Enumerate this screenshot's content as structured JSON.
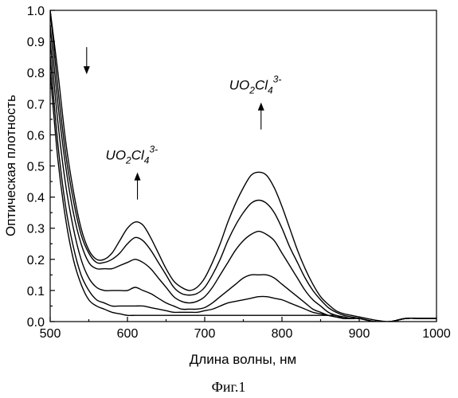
{
  "chart_data": {
    "type": "line",
    "title": "",
    "xlabel": "Длина волны, нм",
    "ylabel": "Оптическая плотность",
    "xlim": [
      500,
      1000
    ],
    "ylim": [
      0,
      1.0
    ],
    "x_ticks": [
      500,
      600,
      700,
      800,
      900,
      1000
    ],
    "y_ticks": [
      0.0,
      0.1,
      0.2,
      0.3,
      0.4,
      0.5,
      0.6,
      0.7,
      0.8,
      0.9,
      1.0
    ],
    "grid": false,
    "x": [
      500,
      510,
      520,
      530,
      540,
      550,
      560,
      570,
      580,
      590,
      600,
      610,
      620,
      630,
      640,
      650,
      660,
      670,
      680,
      690,
      700,
      710,
      720,
      730,
      740,
      750,
      760,
      770,
      780,
      790,
      800,
      810,
      820,
      830,
      840,
      850,
      860,
      870,
      880,
      890,
      900,
      920,
      940,
      960,
      980,
      1000
    ],
    "series": [
      {
        "values": [
          0.8,
          0.52,
          0.33,
          0.2,
          0.12,
          0.07,
          0.05,
          0.04,
          0.03,
          0.025,
          0.02,
          0.02,
          0.02,
          0.02,
          0.02,
          0.02,
          0.02,
          0.02,
          0.02,
          0.02,
          0.02,
          0.02,
          0.02,
          0.02,
          0.02,
          0.02,
          0.02,
          0.02,
          0.02,
          0.02,
          0.02,
          0.02,
          0.02,
          0.02,
          0.02,
          0.02,
          0.02,
          0.02,
          0.01,
          0.01,
          0.01,
          0.0,
          0.0,
          0.01,
          0.01,
          0.01
        ]
      },
      {
        "values": [
          0.85,
          0.57,
          0.37,
          0.24,
          0.15,
          0.1,
          0.07,
          0.06,
          0.05,
          0.05,
          0.05,
          0.05,
          0.05,
          0.045,
          0.04,
          0.035,
          0.03,
          0.03,
          0.03,
          0.03,
          0.035,
          0.04,
          0.05,
          0.06,
          0.065,
          0.07,
          0.075,
          0.08,
          0.08,
          0.075,
          0.07,
          0.06,
          0.05,
          0.04,
          0.03,
          0.025,
          0.02,
          0.015,
          0.01,
          0.01,
          0.01,
          0.0,
          0.0,
          0.01,
          0.01,
          0.01
        ]
      },
      {
        "values": [
          0.9,
          0.64,
          0.44,
          0.3,
          0.2,
          0.14,
          0.11,
          0.1,
          0.1,
          0.1,
          0.1,
          0.11,
          0.1,
          0.09,
          0.075,
          0.06,
          0.05,
          0.04,
          0.04,
          0.04,
          0.045,
          0.06,
          0.08,
          0.1,
          0.12,
          0.14,
          0.15,
          0.15,
          0.15,
          0.14,
          0.12,
          0.1,
          0.08,
          0.06,
          0.04,
          0.03,
          0.02,
          0.015,
          0.01,
          0.01,
          0.01,
          0.0,
          0.0,
          0.01,
          0.01,
          0.01
        ]
      },
      {
        "values": [
          0.95,
          0.7,
          0.5,
          0.35,
          0.25,
          0.19,
          0.17,
          0.17,
          0.17,
          0.18,
          0.19,
          0.2,
          0.19,
          0.17,
          0.14,
          0.11,
          0.08,
          0.065,
          0.06,
          0.065,
          0.08,
          0.11,
          0.15,
          0.19,
          0.23,
          0.26,
          0.28,
          0.29,
          0.28,
          0.26,
          0.22,
          0.18,
          0.14,
          0.1,
          0.07,
          0.05,
          0.03,
          0.02,
          0.015,
          0.01,
          0.01,
          0.0,
          0.0,
          0.01,
          0.01,
          0.01
        ]
      },
      {
        "values": [
          1.0,
          0.75,
          0.54,
          0.39,
          0.28,
          0.22,
          0.19,
          0.19,
          0.2,
          0.22,
          0.25,
          0.27,
          0.26,
          0.23,
          0.19,
          0.15,
          0.11,
          0.09,
          0.085,
          0.09,
          0.11,
          0.15,
          0.2,
          0.26,
          0.31,
          0.35,
          0.38,
          0.39,
          0.38,
          0.35,
          0.3,
          0.24,
          0.19,
          0.14,
          0.1,
          0.07,
          0.045,
          0.03,
          0.02,
          0.015,
          0.01,
          0.0,
          0.0,
          0.01,
          0.01,
          0.01
        ]
      },
      {
        "values": [
          1.0,
          0.8,
          0.58,
          0.42,
          0.3,
          0.23,
          0.2,
          0.2,
          0.22,
          0.26,
          0.3,
          0.32,
          0.31,
          0.27,
          0.22,
          0.17,
          0.13,
          0.11,
          0.1,
          0.11,
          0.14,
          0.19,
          0.25,
          0.32,
          0.38,
          0.43,
          0.47,
          0.48,
          0.47,
          0.43,
          0.37,
          0.3,
          0.23,
          0.17,
          0.12,
          0.08,
          0.055,
          0.035,
          0.025,
          0.02,
          0.015,
          0.005,
          0.0,
          0.01,
          0.01,
          0.01
        ]
      }
    ],
    "annotations": [
      {
        "text": "UO",
        "sub": "2",
        "mid": "Cl",
        "sub2": "4",
        "sup": "3-",
        "x": 615,
        "y": 0.52,
        "arrow": "up"
      },
      {
        "text": "UO",
        "sub": "2",
        "mid": "Cl",
        "sub2": "4",
        "sup": "3-",
        "x": 775,
        "y": 0.745,
        "arrow": "up"
      },
      {
        "arrow": "down",
        "x": 540,
        "y": 0.8
      }
    ]
  },
  "caption": "Фиг.1"
}
